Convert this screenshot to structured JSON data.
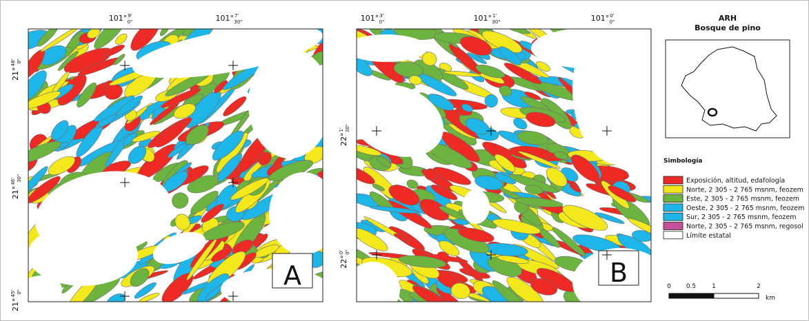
{
  "panels": [
    {
      "label": "A",
      "top_coords": [
        {
          "deg": "101°",
          "min": "9'",
          "sec": "0\""
        },
        {
          "deg": "101°",
          "min": "7'",
          "sec": "30\""
        }
      ],
      "left_coords": [
        {
          "deg": "21°",
          "min": "48'",
          "sec": "0\""
        },
        {
          "deg": "21°",
          "min": "46'",
          "sec": "30\""
        },
        {
          "deg": "21°",
          "min": "45'",
          "sec": "0\""
        }
      ]
    },
    {
      "label": "B",
      "top_coords": [
        {
          "deg": "101°",
          "min": "3'",
          "sec": "0\""
        },
        {
          "deg": "101°",
          "min": "1'",
          "sec": "30\""
        },
        {
          "deg": "101°",
          "min": "0'",
          "sec": "0\""
        }
      ],
      "left_coords": [
        {
          "deg": "22°",
          "min": "1'",
          "sec": "30\""
        },
        {
          "deg": "22°",
          "min": "0'",
          "sec": "0\""
        }
      ]
    }
  ],
  "inset": {
    "title": "ARH",
    "subtitle": "Bosque de pino"
  },
  "legend": {
    "title": "Simbología",
    "items": [
      {
        "label": "Exposición, altitud, edafología",
        "color": "#ee2a24"
      },
      {
        "label": "Norte, 2 305 - 2 765 msnm, feozem",
        "color": "#f2e81b"
      },
      {
        "label": "Este, 2 305 - 2 765 msnm, feozem",
        "color": "#6db33f"
      },
      {
        "label": "Oeste, 2 305 - 2 765 msnm, feozem",
        "color": "#1eb6e8"
      },
      {
        "label": "Sur, 2 305 - 2 765 msnm, feozem",
        "color": "#1eb6e8"
      },
      {
        "label": "Norte, 2 305 - 2 765 msnm, regosol",
        "color": "#c64f9b"
      },
      {
        "label": "Límite estatal",
        "color": "#ffffff"
      }
    ]
  },
  "scale_bar": {
    "labels": [
      "0",
      "0.5",
      "1",
      "2"
    ],
    "unit": "km"
  }
}
